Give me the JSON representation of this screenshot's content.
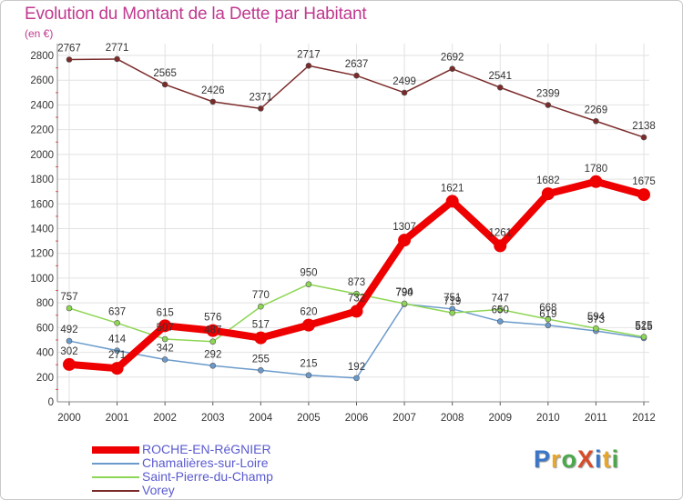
{
  "title": "Evolution du Montant de la Dette par Habitant",
  "subtitle": "(en €)",
  "brand": {
    "text": "ProXiti",
    "letter_colors": [
      "#3a76c8",
      "#e8a62a",
      "#4aa84a",
      "#d84b2a",
      "#3a76c8",
      "#e8a62a",
      "#4aa84a"
    ]
  },
  "chart_data": {
    "type": "line",
    "x": [
      "2000",
      "2001",
      "2002",
      "2003",
      "2004",
      "2005",
      "2006",
      "2007",
      "2008",
      "2009",
      "2010",
      "2011",
      "2012"
    ],
    "yticks": [
      "0",
      "200",
      "400",
      "600",
      "800",
      "1000",
      "1200",
      "1400",
      "1600",
      "1800",
      "2000",
      "2200",
      "2400",
      "2600",
      "2800"
    ],
    "ylim": [
      0,
      2800
    ],
    "grid": true,
    "legend_position": "bottom-left",
    "series": [
      {
        "name": "ROCHE-EN-RéGNIER",
        "color": "#ee0000",
        "width": 8,
        "marker": 7,
        "values": [
          302,
          271,
          615,
          576,
          517,
          620,
          732,
          1307,
          1621,
          1261,
          1682,
          1780,
          1675
        ],
        "labels": [
          "302",
          "271",
          "615",
          "576",
          "517",
          "620",
          "732",
          "1307",
          "1621",
          "1261",
          "1682",
          "1780",
          "1675"
        ]
      },
      {
        "name": "Chamalières-sur-Loire",
        "color": "#6a9acb",
        "width": 1.5,
        "marker": 3,
        "values": [
          492,
          414,
          342,
          292,
          255,
          215,
          192,
          790,
          751,
          650,
          619,
          573,
          515
        ],
        "labels": [
          "492",
          "414",
          "342",
          "292",
          "255",
          "215",
          "192",
          "790",
          "751",
          "650",
          "619",
          "573",
          "515"
        ]
      },
      {
        "name": "Saint-Pierre-du-Champ",
        "color": "#8ed655",
        "width": 1.5,
        "marker": 3,
        "values": [
          757,
          637,
          507,
          487,
          770,
          950,
          873,
          794,
          719,
          747,
          668,
          594,
          525
        ],
        "labels": [
          "757",
          "637",
          "507",
          "487",
          "770",
          "950",
          "873",
          "794",
          "719",
          "747",
          "668",
          "594",
          "525"
        ]
      },
      {
        "name": "Vorey",
        "color": "#7b2a2a",
        "width": 1.5,
        "marker": 3,
        "values": [
          2767,
          2771,
          2565,
          2426,
          2371,
          2717,
          2637,
          2499,
          2692,
          2541,
          2399,
          2269,
          2138
        ],
        "labels": [
          "2767",
          "2771",
          "2565",
          "2426",
          "2371",
          "2717",
          "2637",
          "2499",
          "2692",
          "2541",
          "2399",
          "2269",
          "2138"
        ]
      }
    ]
  }
}
